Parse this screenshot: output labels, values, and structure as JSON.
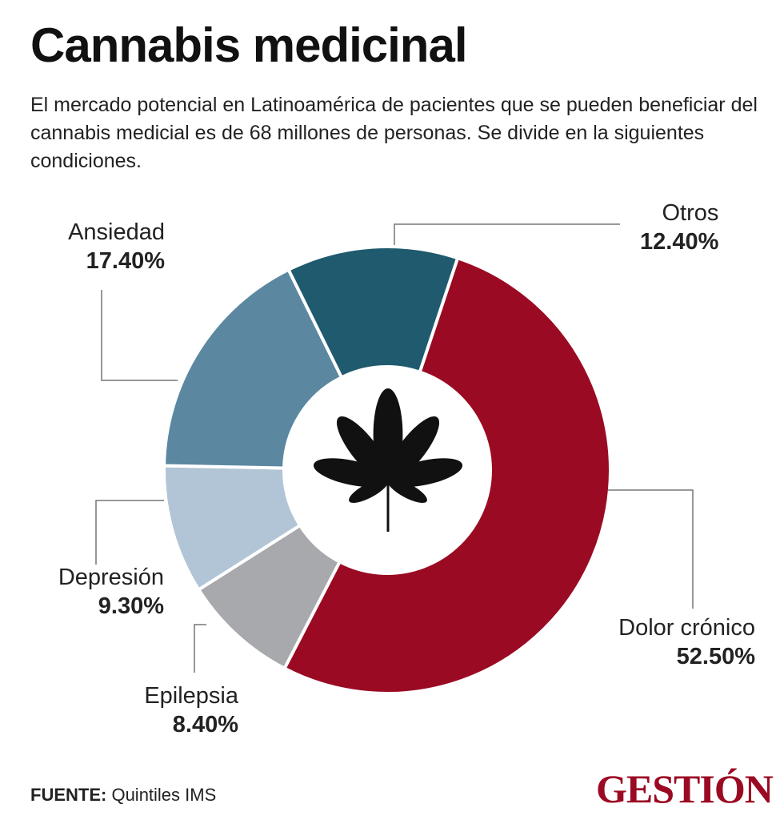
{
  "title": "Cannabis medicinal",
  "subtitle": "El mercado potencial en Latinoamérica de pacientes que se pueden beneficiar del cannabis medicial es de 68 millones de personas. Se divide en la siguientes condiciones.",
  "chart_data": {
    "type": "pie",
    "donut": true,
    "categories": [
      "Dolor crónico",
      "Epilepsia",
      "Depresión",
      "Ansiedad",
      "Otros"
    ],
    "values": [
      52.5,
      8.4,
      9.3,
      17.4,
      12.4
    ],
    "labels": [
      "52.50%",
      "8.40%",
      "9.30%",
      "17.40%",
      "12.40%"
    ],
    "colors": [
      "#9b0a23",
      "#a7a9ac",
      "#b1c5d7",
      "#5b87a1",
      "#1f5a6e"
    ],
    "center_icon": "cannabis-leaf-icon"
  },
  "source": {
    "label": "FUENTE:",
    "value": "Quintiles IMS"
  },
  "logo": "GESTIÓN"
}
